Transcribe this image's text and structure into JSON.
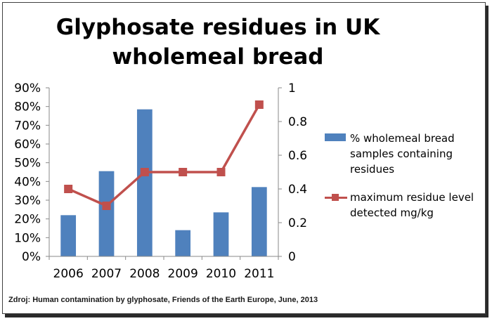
{
  "chart_data": {
    "type": "bar",
    "title_lines": [
      "Glyphosate residues in UK",
      "wholemeal bread"
    ],
    "categories": [
      "2006",
      "2007",
      "2008",
      "2009",
      "2010",
      "2011"
    ],
    "series": [
      {
        "name": "% wholemeal bread samples containing residues",
        "legend_lines": [
          "% wholemeal bread",
          "samples containing",
          "residues"
        ],
        "type": "bar",
        "axis": "left",
        "values": [
          22,
          45.5,
          78.5,
          14,
          23.5,
          37
        ],
        "color": "#4f81bd"
      },
      {
        "name": "maximum residue level detected mg/kg",
        "legend_lines": [
          "maximum residue level",
          "detected mg/kg"
        ],
        "type": "line",
        "axis": "right",
        "values": [
          0.4,
          0.3,
          0.5,
          0.5,
          0.5,
          0.9
        ],
        "color": "#c0504d"
      }
    ],
    "y_left": {
      "ylim": [
        0,
        90
      ],
      "ticks": [
        0,
        10,
        20,
        30,
        40,
        50,
        60,
        70,
        80,
        90
      ],
      "tick_labels": [
        "0%",
        "10%",
        "20%",
        "30%",
        "40%",
        "50%",
        "60%",
        "70%",
        "80%",
        "90%"
      ]
    },
    "y_right": {
      "ylim": [
        0,
        1
      ],
      "ticks": [
        0,
        0.2,
        0.4,
        0.6,
        0.8,
        1
      ],
      "tick_labels": [
        "0",
        "0.2",
        "0.4",
        "0.6",
        "0.8",
        "1"
      ]
    },
    "grid": false,
    "legend_position": "right"
  },
  "source": "Zdroj: Human contamination by glyphosate, Friends of the Earth Europe, June, 2013"
}
